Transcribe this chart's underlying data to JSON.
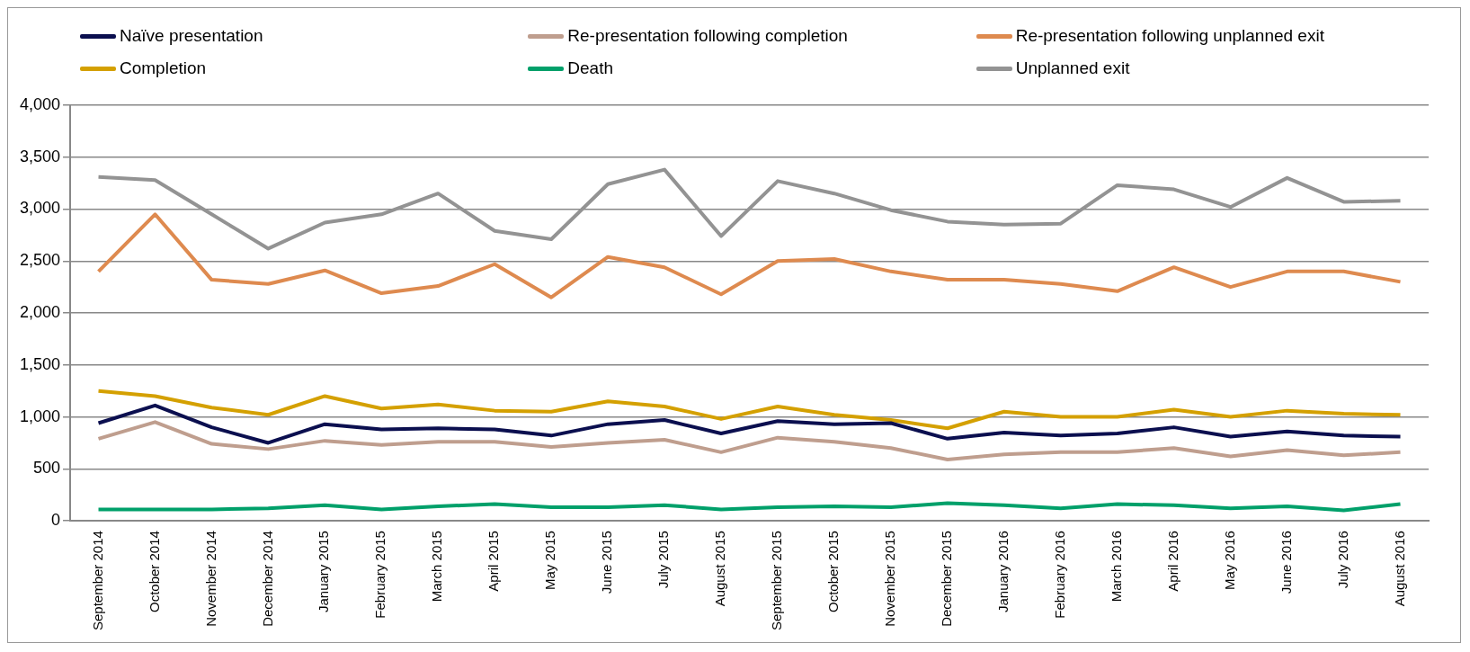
{
  "chart_data": {
    "type": "line",
    "categories": [
      "September 2014",
      "October 2014",
      "November 2014",
      "December 2014",
      "January 2015",
      "February 2015",
      "March 2015",
      "April 2015",
      "May 2015",
      "June 2015",
      "July 2015",
      "August 2015",
      "September 2015",
      "October 2015",
      "November 2015",
      "December 2015",
      "January 2016",
      "February 2016",
      "March 2016",
      "April 2016",
      "May 2016",
      "June 2016",
      "July 2016",
      "August 2016"
    ],
    "series": [
      {
        "name": "Naïve presentation",
        "color": "#0b0f4f",
        "values": [
          940,
          1110,
          900,
          750,
          930,
          880,
          890,
          880,
          820,
          930,
          970,
          840,
          960,
          930,
          940,
          790,
          850,
          820,
          840,
          900,
          810,
          860,
          820,
          810
        ]
      },
      {
        "name": "Re-presentation following completion",
        "color": "#bf9e8e",
        "values": [
          790,
          950,
          740,
          690,
          770,
          730,
          760,
          760,
          710,
          750,
          780,
          660,
          800,
          760,
          700,
          590,
          640,
          660,
          660,
          700,
          620,
          680,
          630,
          660
        ]
      },
      {
        "name": "Re-presentation following unplanned exit",
        "color": "#de8a4f",
        "values": [
          2400,
          2950,
          2320,
          2280,
          2410,
          2190,
          2260,
          2470,
          2150,
          2540,
          2440,
          2180,
          2500,
          2520,
          2400,
          2320,
          2320,
          2280,
          2210,
          2440,
          2250,
          2400,
          2400,
          2300
        ]
      },
      {
        "name": "Completion",
        "color": "#d4a000",
        "values": [
          1250,
          1200,
          1090,
          1020,
          1200,
          1080,
          1120,
          1060,
          1050,
          1150,
          1100,
          980,
          1100,
          1020,
          970,
          890,
          1050,
          1000,
          1000,
          1070,
          1000,
          1060,
          1030,
          1020
        ]
      },
      {
        "name": "Death",
        "color": "#00a06a",
        "values": [
          110,
          110,
          110,
          120,
          150,
          110,
          140,
          160,
          130,
          130,
          150,
          110,
          130,
          140,
          130,
          170,
          150,
          120,
          160,
          150,
          120,
          140,
          100,
          160
        ]
      },
      {
        "name": "Unplanned exit",
        "color": "#939393",
        "values": [
          3310,
          3280,
          2950,
          2620,
          2870,
          2950,
          3150,
          2790,
          2710,
          3240,
          3380,
          2740,
          3270,
          3150,
          2990,
          2880,
          2850,
          2860,
          3230,
          3190,
          3020,
          3300,
          3070,
          3080
        ]
      }
    ],
    "ylim": [
      0,
      4000
    ],
    "yticks": [
      {
        "value": 0,
        "label": "0"
      },
      {
        "value": 500,
        "label": "500"
      },
      {
        "value": 1000,
        "label": "1,000"
      },
      {
        "value": 1500,
        "label": "1,500"
      },
      {
        "value": 2000,
        "label": "2,000"
      },
      {
        "value": 2500,
        "label": "2,500"
      },
      {
        "value": 3000,
        "label": "3,000"
      },
      {
        "value": 3500,
        "label": "3,500"
      },
      {
        "value": 4000,
        "label": "4,000"
      }
    ],
    "grid": "y",
    "legend": "top",
    "marker": "none",
    "line_style": "solid"
  }
}
